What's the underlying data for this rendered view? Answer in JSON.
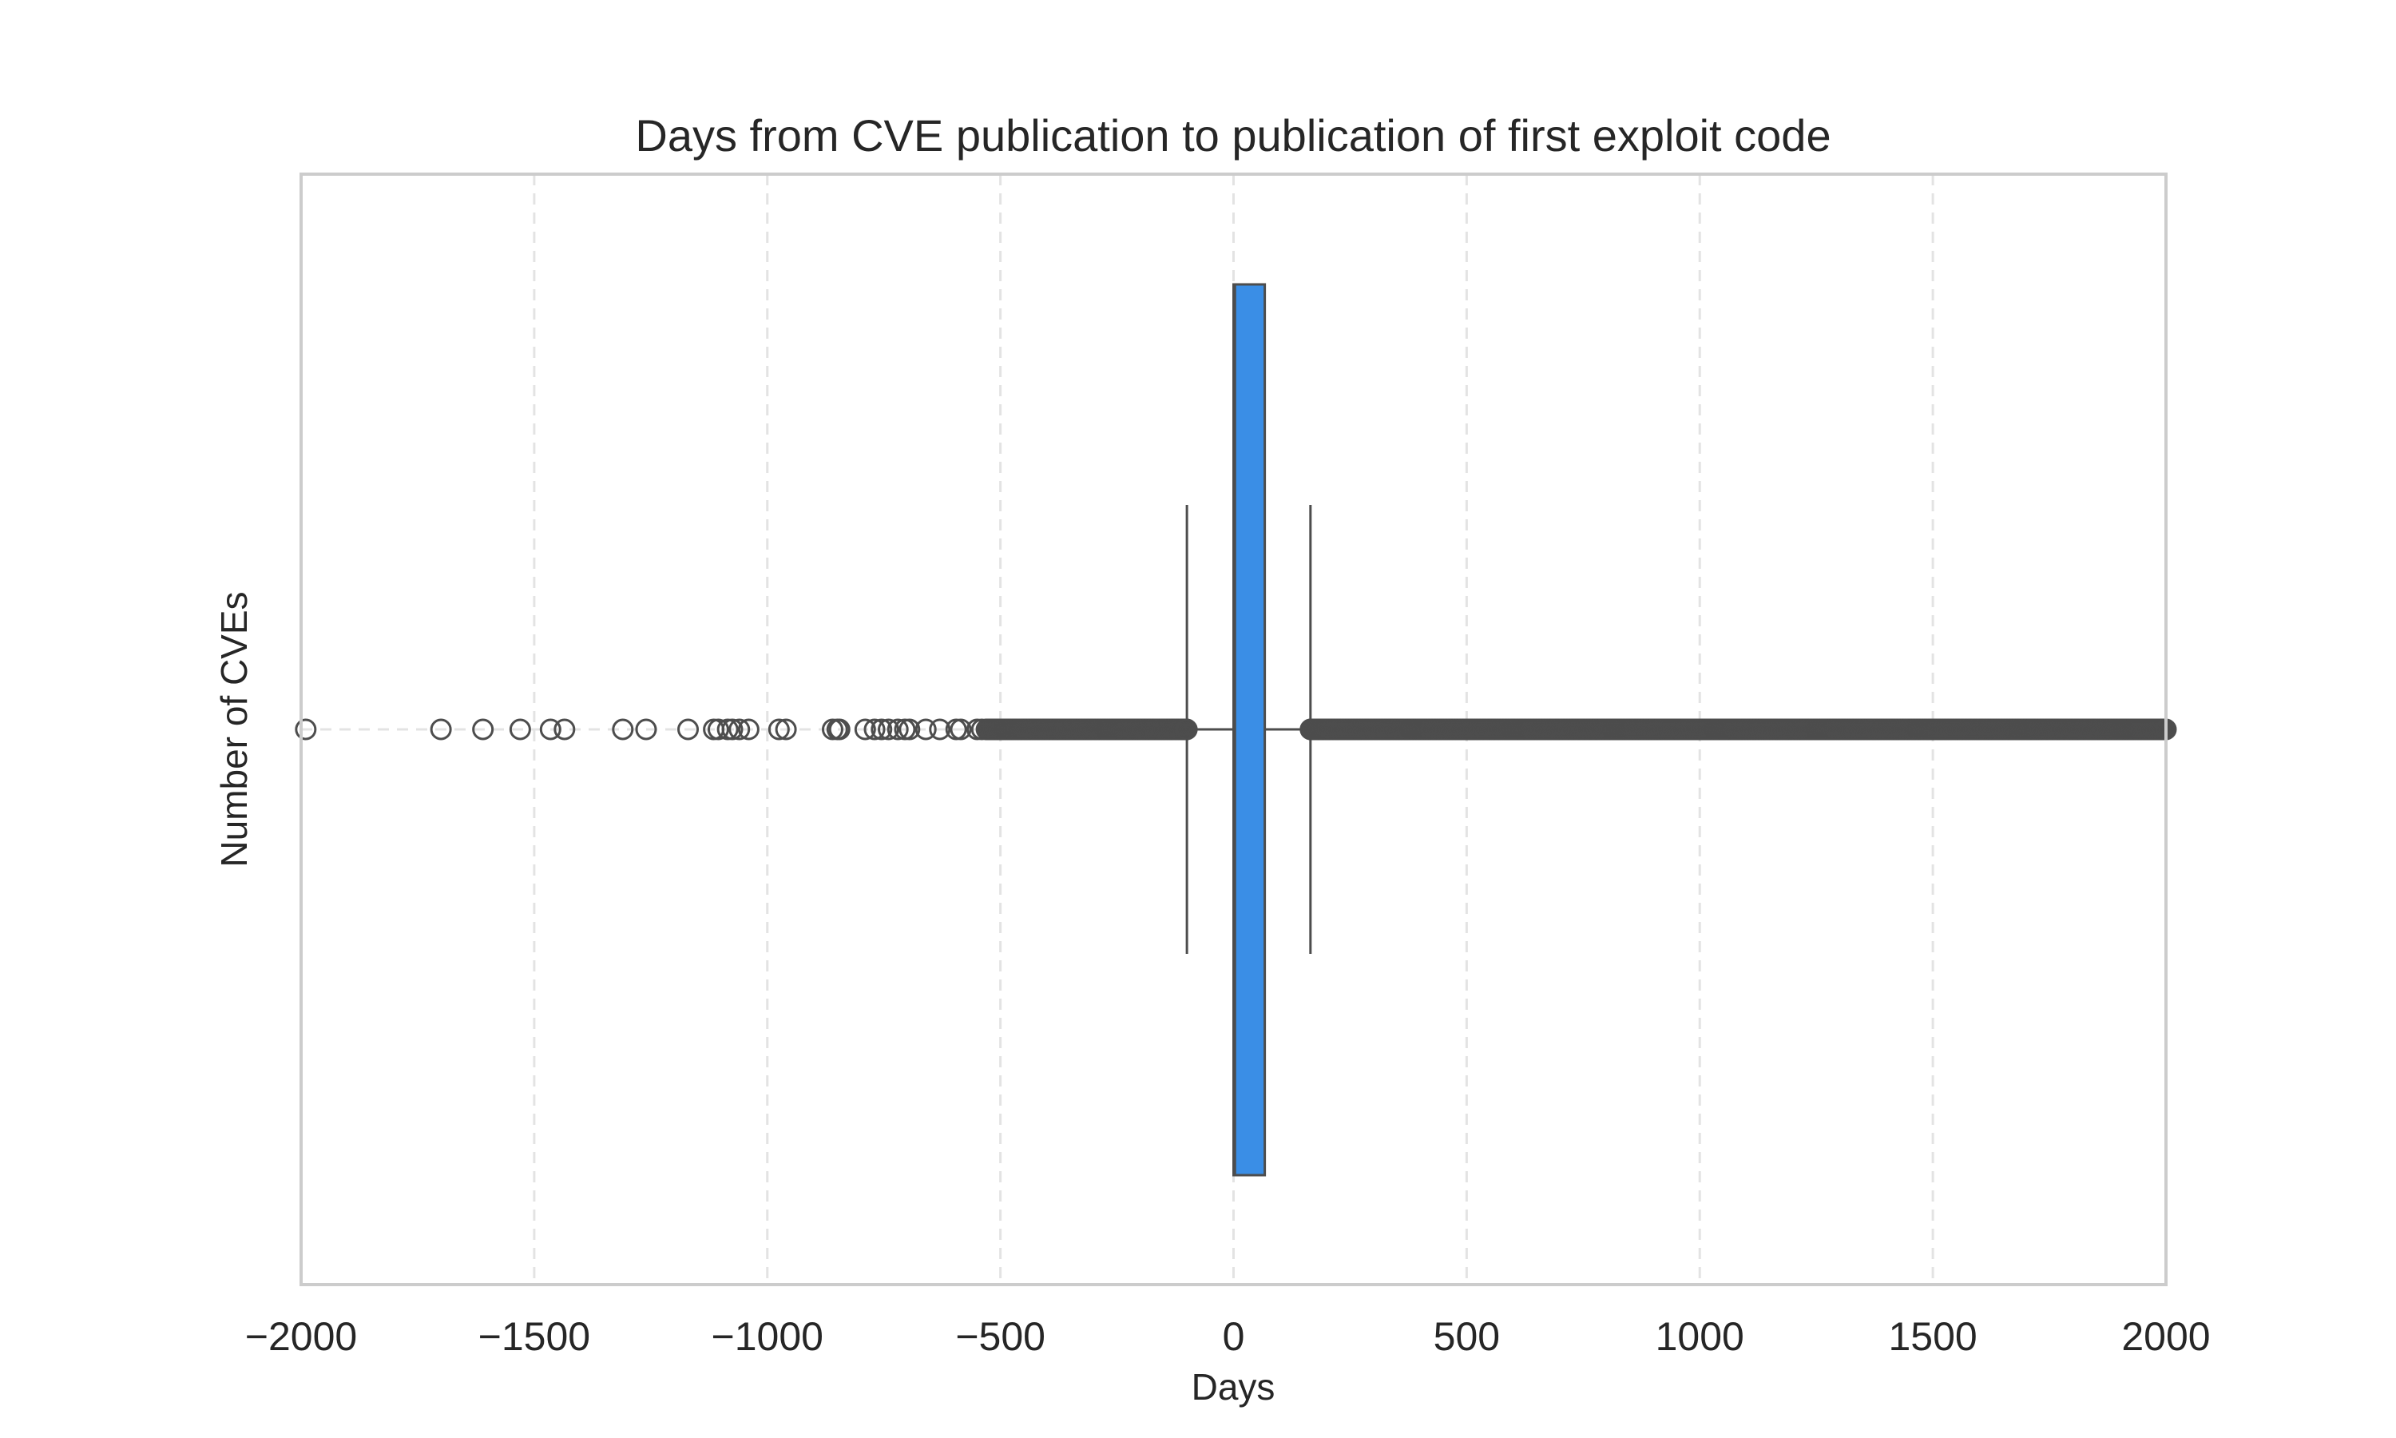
{
  "chart_data": {
    "type": "box",
    "orientation": "horizontal",
    "title": "Days from CVE publication to publication of first exploit code",
    "xlabel": "Days",
    "ylabel": "Number of CVEs",
    "xlim": [
      -2000,
      2000
    ],
    "xticks": [
      -2000,
      -1500,
      -1000,
      -500,
      0,
      500,
      1000,
      1500,
      2000
    ],
    "xtick_labels": [
      "−2000",
      "−1500",
      "−1000",
      "−500",
      "0",
      "500",
      "1000",
      "1500",
      "2000"
    ],
    "grid": "vertical dashed",
    "box": {
      "q1": 0,
      "median": 3,
      "q3": 67,
      "whisker_low": -100,
      "whisker_high": 165,
      "fill_color": "#3a8ee6",
      "edge_color": "#4d4d4d"
    },
    "outliers_sparse": [
      -1990,
      -1700,
      -1610,
      -1530,
      -1465,
      -1435,
      -1310,
      -1260,
      -1170,
      -1115,
      -1105,
      -1085,
      -1075,
      -1060,
      -1040,
      -975,
      -960,
      -860,
      -850,
      -845,
      -790,
      -770,
      -755,
      -740,
      -720,
      -705,
      -695,
      -660,
      -630,
      -595,
      -585,
      -550,
      -540
    ],
    "outliers_dense_ranges": [
      [
        -530,
        -100
      ],
      [
        165,
        2000
      ]
    ],
    "colors": {
      "box": "#3a8ee6",
      "marker_edge": "#4d4d4d",
      "grid": "#e3e3e3",
      "frame": "#cccccc"
    }
  }
}
